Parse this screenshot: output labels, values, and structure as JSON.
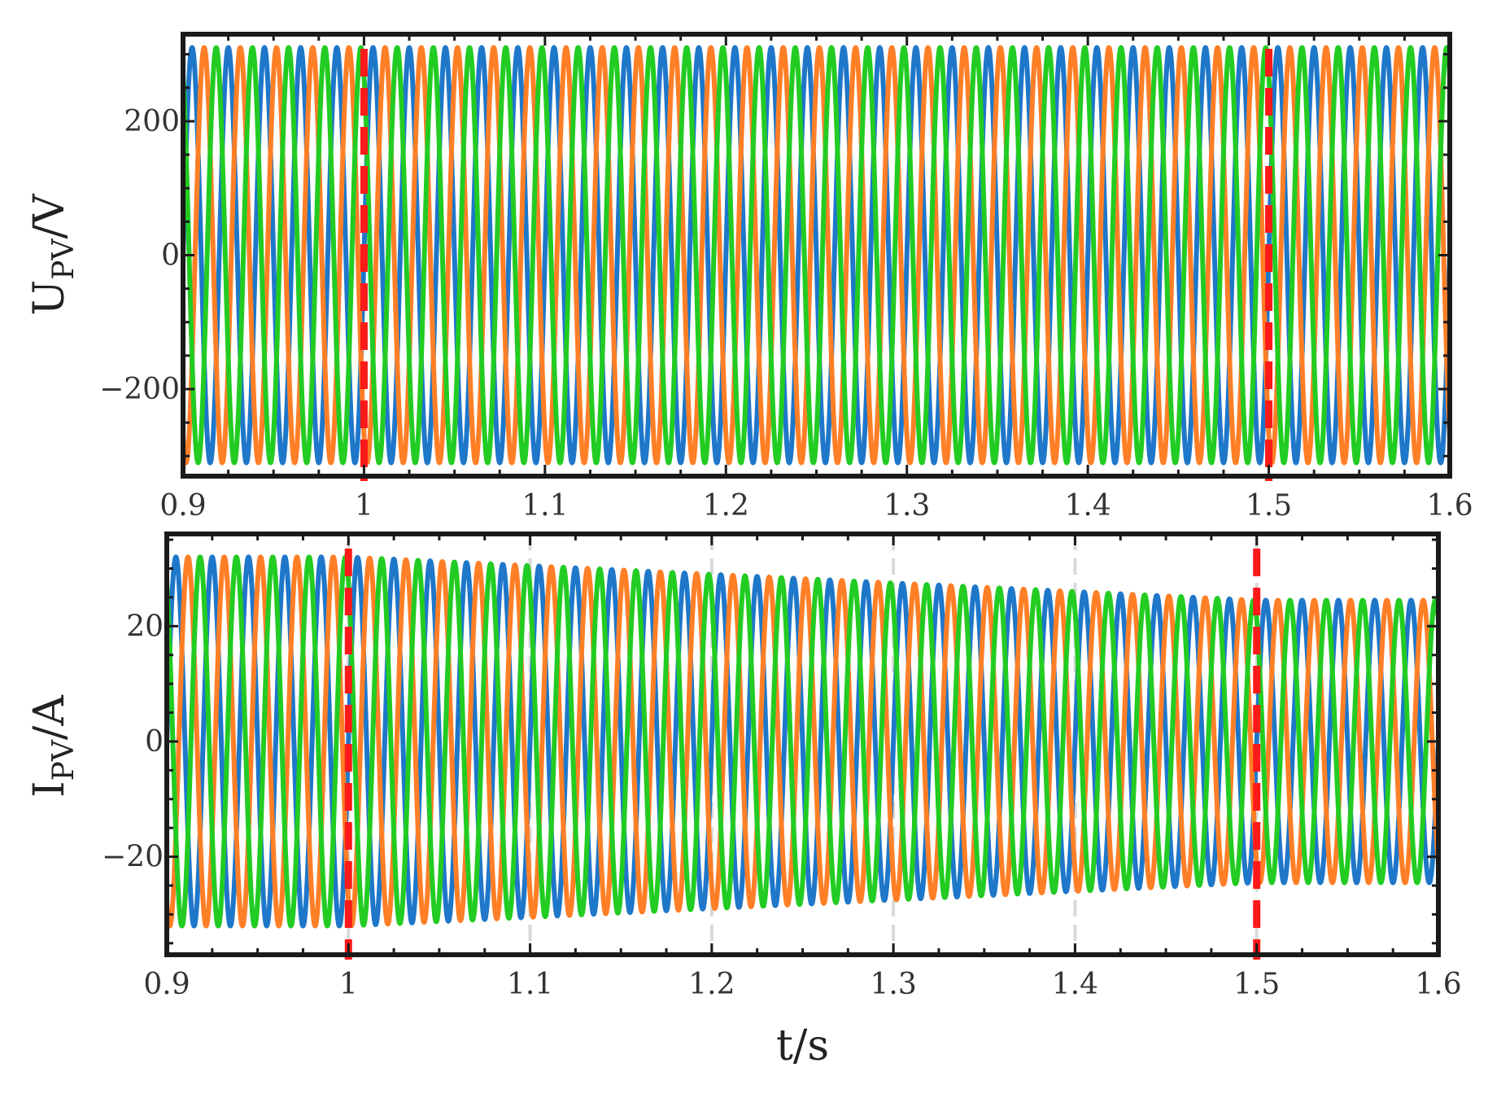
{
  "colors": {
    "phase_a": "#1f77c9",
    "phase_b": "#ff7f27",
    "phase_c": "#22cc22",
    "marker": "#ff1a1a",
    "frame": "#1a1a1a",
    "grid": "#d9d9d9"
  },
  "chart_data": [
    {
      "type": "line",
      "ylabel_main": "U",
      "ylabel_sub": "PV",
      "ylabel_unit": "/V",
      "xlim": [
        0.9,
        1.6
      ],
      "ylim": [
        -330,
        330
      ],
      "xticks": [
        0.9,
        1.0,
        1.1,
        1.2,
        1.3,
        1.4,
        1.5,
        1.6
      ],
      "xtick_labels": [
        "0.9",
        "1",
        "1.1",
        "1.2",
        "1.3",
        "1.4",
        "1.5",
        "1.6"
      ],
      "yticks": [
        -200,
        0,
        200
      ],
      "ytick_labels": [
        "−200",
        "0",
        "200"
      ],
      "frequency_hz": 50,
      "amplitude_points": [
        [
          0.9,
          310
        ],
        [
          1.6,
          310
        ]
      ],
      "phases_deg": [
        0,
        -120,
        120
      ],
      "markers_x": [
        1.0,
        1.5
      ],
      "grid": false
    },
    {
      "type": "line",
      "ylabel_main": "I",
      "ylabel_sub": "PV",
      "ylabel_unit": "/A",
      "xlim": [
        0.9,
        1.6
      ],
      "ylim": [
        -37,
        36
      ],
      "xticks": [
        0.9,
        1.0,
        1.1,
        1.2,
        1.3,
        1.4,
        1.5,
        1.6
      ],
      "xtick_labels": [
        "0.9",
        "1",
        "1.1",
        "1.2",
        "1.3",
        "1.4",
        "1.5",
        "1.6"
      ],
      "yticks": [
        -20,
        0,
        20
      ],
      "ytick_labels": [
        "−20",
        "0",
        "20"
      ],
      "xlabel": "t/s",
      "frequency_hz": 50,
      "amplitude_points": [
        [
          0.9,
          32
        ],
        [
          1.0,
          32
        ],
        [
          1.5,
          24.5
        ],
        [
          1.6,
          24.5
        ]
      ],
      "phases_deg": [
        0,
        -120,
        120
      ],
      "markers_x": [
        1.0,
        1.5
      ],
      "grid": true
    }
  ]
}
